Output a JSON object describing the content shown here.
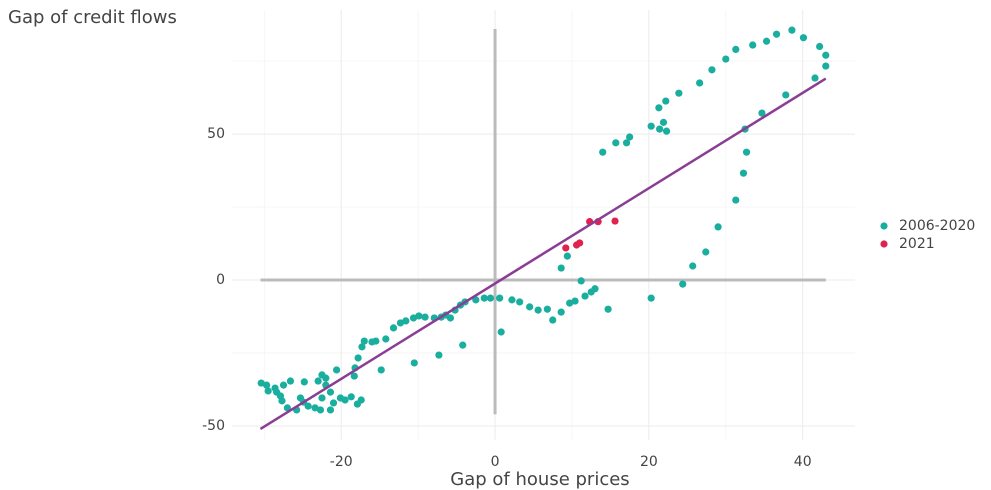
{
  "chart_data": {
    "type": "scatter",
    "title": "Gap of credit flows",
    "x_label": "Gap of house prices",
    "xlim": [
      -34.2,
      46.8
    ],
    "ylim": [
      -54.8,
      92.5
    ],
    "xticks": [
      -20,
      0,
      20,
      40
    ],
    "yticks": [
      -50,
      0,
      50
    ],
    "x_minor_grid": [
      -30,
      -10,
      10,
      30
    ],
    "y_minor_grid": [
      -25,
      25,
      75
    ],
    "grid": true,
    "legend": "right",
    "reference_lines": [
      {
        "x": [
          0,
          0
        ],
        "y": [
          -46,
          86
        ],
        "color": "#bbbbbb"
      },
      {
        "x": [
          -30.5,
          43
        ],
        "y": [
          0,
          0
        ],
        "color": "#bbbbbb"
      }
    ],
    "trend_line": {
      "x": [
        -30.5,
        43
      ],
      "y": [
        -51,
        69
      ],
      "color": "#8b3d96"
    },
    "series": [
      {
        "name": "2006-2020",
        "color": "#1aae9f",
        "x": [
          14,
          15.7,
          17.1,
          17.5,
          20.3,
          21.3,
          21.4,
          21.9,
          22.3,
          22.2,
          23.9,
          26.6,
          28.2,
          30,
          31.3,
          33.5,
          35.3,
          36.6,
          38.6,
          40.1,
          42.2,
          43,
          43,
          41.6,
          37.8,
          34.7,
          32.5,
          32.7,
          32.3,
          31.3,
          29,
          27.4,
          25.7,
          24.4,
          20.3,
          8.6,
          9.4,
          11.2,
          13,
          12.5,
          11.7,
          10.4,
          9.7,
          8.6,
          7.5,
          6.8,
          5.6,
          4.5,
          3.2,
          2.2,
          0.6,
          -0.6,
          -1.4,
          -2.5,
          0.8,
          14.7,
          -3.9,
          -4.5,
          -5.2,
          -5.8,
          -6.4,
          -7,
          -7.9,
          -9.1,
          -9.9,
          -10.6,
          -11.6,
          -12.3,
          -13.2,
          -14.2,
          -15.5,
          -16,
          -17,
          -17.3,
          -17.8,
          -18.2,
          -18.3,
          -4.2,
          -7.3,
          -10.5,
          -14.8,
          -17.4,
          -17.9,
          -18.7,
          -19.5,
          -20.1,
          -21,
          -21.4,
          -22,
          -22.5,
          -20.6,
          -21.4,
          -22.7,
          -23.4,
          -24.3,
          -24.9,
          -25.8,
          -26.6,
          -24.8,
          -23,
          -22,
          -27.5,
          -28.6,
          -29.5,
          -30.4,
          -29.7,
          -27.9,
          -27.7,
          -27,
          -28.4,
          -25.3,
          -22.5
        ],
        "values": [
          43.8,
          47,
          47,
          49,
          52.7,
          59,
          51.7,
          54,
          51,
          61.3,
          64,
          67.5,
          72,
          75.7,
          79,
          80.5,
          81.8,
          84.2,
          85.6,
          83,
          80,
          77,
          73.3,
          69.2,
          63.4,
          57.2,
          51.7,
          43.8,
          36.6,
          27.4,
          18.2,
          9.6,
          4.8,
          -1.4,
          -6.2,
          4.1,
          8.2,
          -0.3,
          -3,
          -4.1,
          -5.5,
          -7.2,
          -7.9,
          -11,
          -13.7,
          -10,
          -10.3,
          -9.2,
          -7.5,
          -6.8,
          -6.2,
          -6.2,
          -6.2,
          -6.8,
          -17.8,
          -10,
          -7.5,
          -8.6,
          -10.3,
          -13,
          -12,
          -12.7,
          -13,
          -12.7,
          -12.3,
          -13,
          -14,
          -14.7,
          -16.4,
          -20.2,
          -20.9,
          -21.2,
          -20.9,
          -22.9,
          -26.7,
          -30.1,
          -32.9,
          -22.3,
          -25.7,
          -28.4,
          -30.8,
          -41.1,
          -42.5,
          -40,
          -41.1,
          -40.4,
          -42.1,
          -38.4,
          -36,
          -32.5,
          -30.8,
          -44.5,
          -44.5,
          -43.8,
          -43.2,
          -41.8,
          -44.5,
          -34.6,
          -34.9,
          -34.6,
          -33.6,
          -36,
          -37,
          -38,
          -35.3,
          -36,
          -39.7,
          -41.4,
          -43.8,
          -38.4,
          -40.4,
          -40.4
        ]
      },
      {
        "name": "2021",
        "color": "#e0234e",
        "x": [
          9.2,
          10.6,
          11,
          12.3,
          13.4,
          15.6
        ],
        "values": [
          11,
          12,
          12.7,
          20,
          20,
          20.2
        ]
      }
    ]
  }
}
